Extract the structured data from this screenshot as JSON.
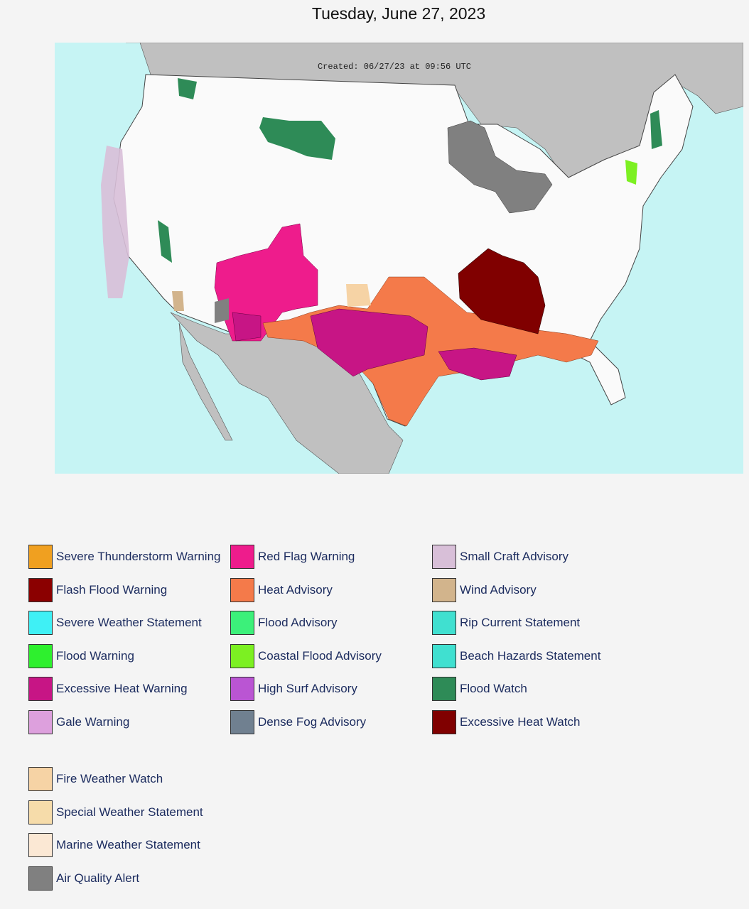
{
  "header": {
    "title": "Tuesday, June 27, 2023"
  },
  "map": {
    "created": "Created: 06/27/23 at 09:56 UTC"
  },
  "legend": {
    "groups": [
      {
        "items": [
          {
            "label": "Severe Thunderstorm Warning",
            "color": "#f0a020"
          },
          {
            "label": "Flash Flood Warning",
            "color": "#8b0000"
          },
          {
            "label": "Severe Weather Statement",
            "color": "#3ff0f5"
          },
          {
            "label": "Flood Warning",
            "color": "#2ef02e"
          },
          {
            "label": "Excessive Heat Warning",
            "color": "#c71585"
          },
          {
            "label": "Gale Warning",
            "color": "#dda0dd"
          },
          {
            "label": "Red Flag Warning",
            "color": "#ee1c8c"
          },
          {
            "label": "Heat Advisory",
            "color": "#f47a4a"
          },
          {
            "label": "Flood Advisory",
            "color": "#3cf07a"
          },
          {
            "label": "Coastal Flood Advisory",
            "color": "#7cf022"
          },
          {
            "label": "High Surf Advisory",
            "color": "#ba55d3"
          },
          {
            "label": "Dense Fog Advisory",
            "color": "#708090"
          },
          {
            "label": "Small Craft Advisory",
            "color": "#d8bfd8"
          },
          {
            "label": "Wind Advisory",
            "color": "#d2b48c"
          },
          {
            "label": "Rip Current Statement",
            "color": "#40e0d0"
          },
          {
            "label": "Beach Hazards Statement",
            "color": "#40e0d0"
          },
          {
            "label": "Flood Watch",
            "color": "#2e8b57"
          },
          {
            "label": "Excessive Heat Watch",
            "color": "#800000"
          }
        ]
      },
      {
        "items": [
          {
            "label": "Fire Weather Watch",
            "color": "#f6d3a5"
          },
          {
            "label": "Special Weather Statement",
            "color": "#f6dcaa"
          },
          {
            "label": "Marine Weather Statement",
            "color": "#fbe8d4"
          },
          {
            "label": "Air Quality Alert",
            "color": "#808080"
          }
        ]
      }
    ]
  }
}
